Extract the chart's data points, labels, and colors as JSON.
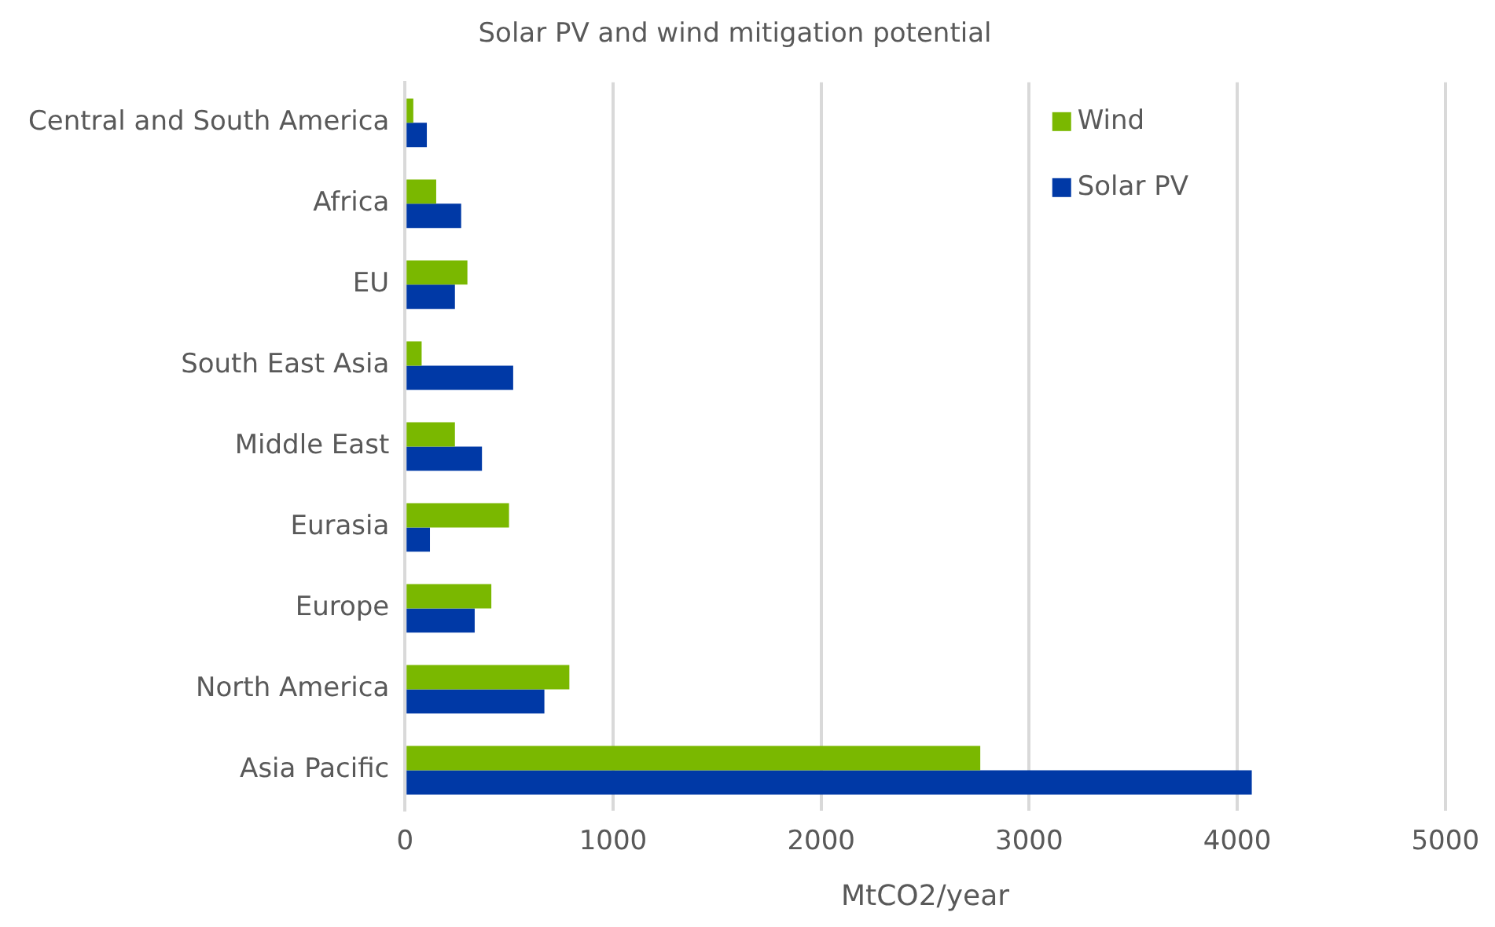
{
  "chart_data": {
    "type": "bar",
    "orientation": "horizontal",
    "title": "Solar PV and wind mitigation potential",
    "xlabel": "MtCO2/year",
    "categories": [
      "Central and South America",
      "Africa",
      "EU",
      "South East Asia",
      "Middle East",
      "Eurasia",
      "Europe",
      "North America",
      "Asia Pacific"
    ],
    "series": [
      {
        "name": "Wind",
        "color": "#7ab800",
        "values": [
          40,
          150,
          300,
          80,
          240,
          500,
          415,
          790,
          2765
        ]
      },
      {
        "name": "Solar PV",
        "color": "#0039a6",
        "values": [
          105,
          270,
          240,
          520,
          370,
          120,
          335,
          670,
          4070
        ]
      }
    ],
    "xlim": [
      0,
      5000
    ],
    "xticks": [
      0,
      1000,
      2000,
      3000,
      4000,
      5000
    ],
    "grid": "x",
    "legend": "top right"
  }
}
